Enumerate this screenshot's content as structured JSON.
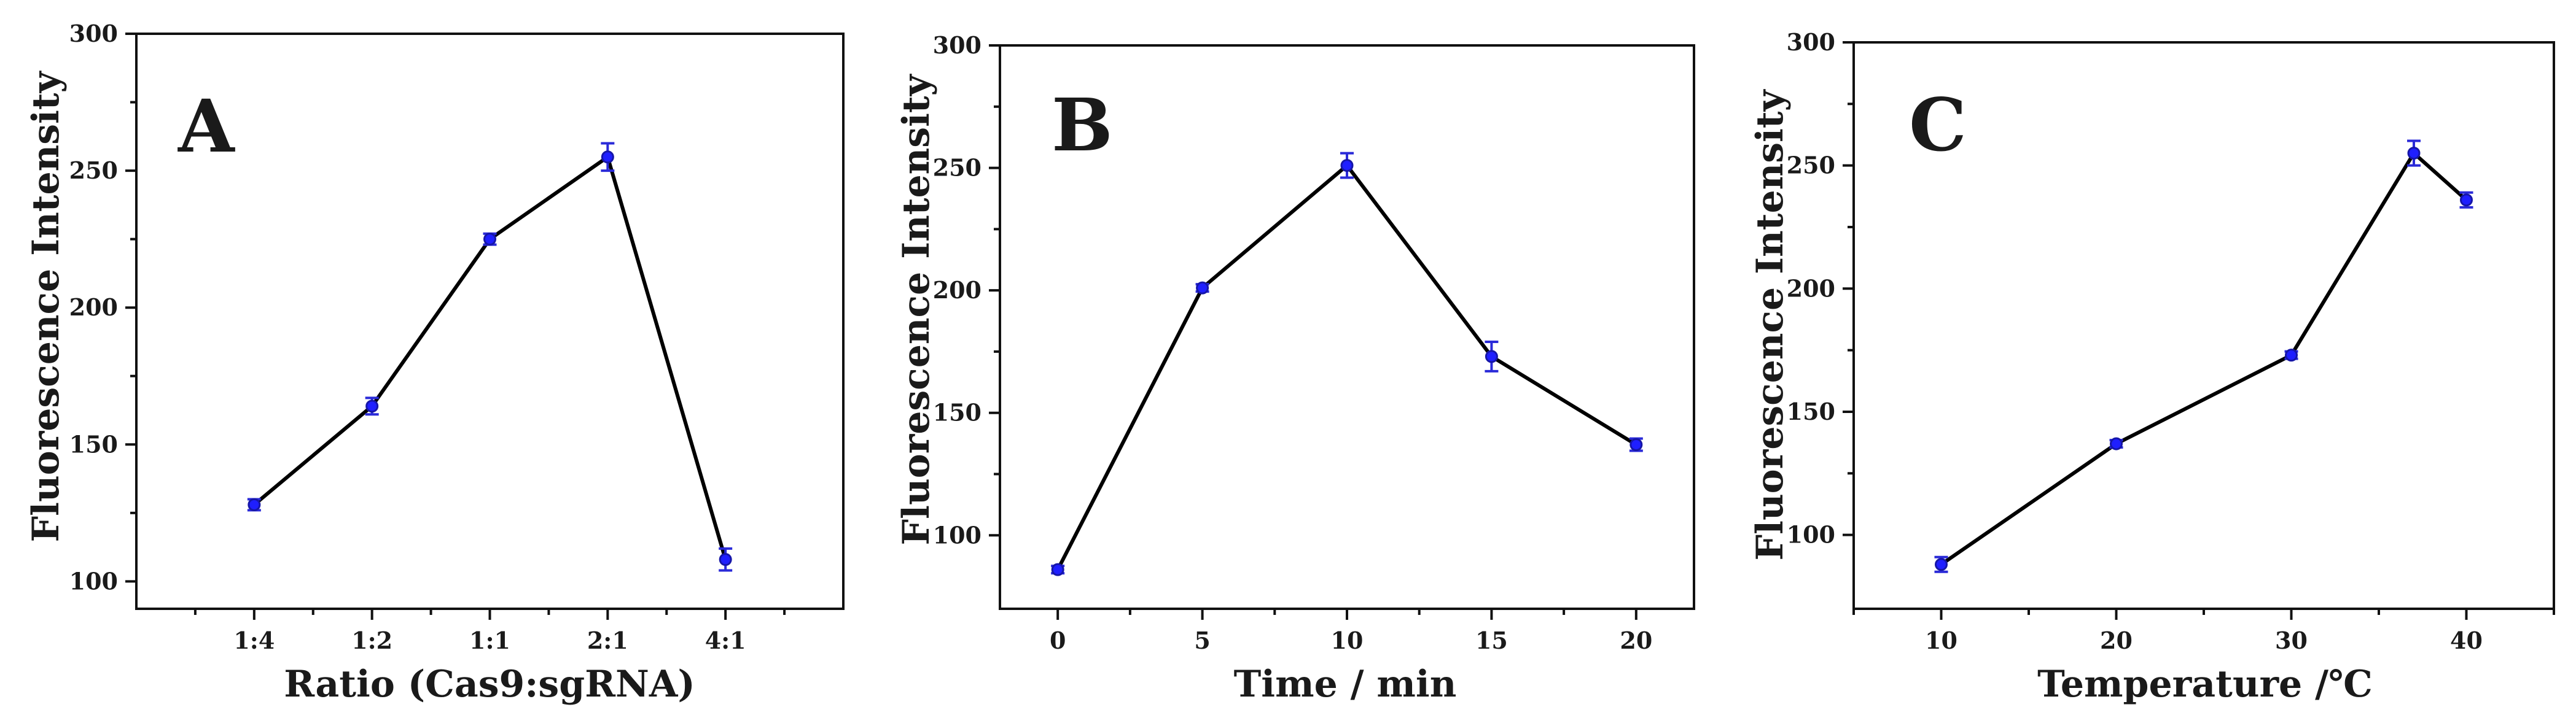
{
  "chart_data": [
    {
      "type": "line",
      "panel": "A",
      "title": "",
      "xlabel": "Ratio (Cas9:sgRNA)",
      "ylabel": "Fluorescence Intensity",
      "categories": [
        "1:4",
        "1:2",
        "1:1",
        "2:1",
        "4:1"
      ],
      "values": [
        128,
        164,
        225,
        255,
        108
      ],
      "errors": [
        2,
        3,
        2,
        5,
        4
      ],
      "ylim": [
        90,
        300
      ],
      "yticks": [
        100,
        150,
        200,
        250,
        300
      ],
      "colors": {
        "line": "#000000",
        "marker": "#1f1fff",
        "errorbar": "#2a2ad8"
      }
    },
    {
      "type": "line",
      "panel": "B",
      "title": "",
      "xlabel": "Time / min",
      "ylabel": "Fluorescence Intensity",
      "x": [
        0,
        5,
        10,
        15,
        20
      ],
      "values": [
        86,
        201,
        251,
        173,
        137
      ],
      "errors": [
        1.5,
        1.5,
        5,
        6,
        2.5
      ],
      "xlim": [
        -2,
        22
      ],
      "xticks": [
        0,
        5,
        10,
        15,
        20
      ],
      "ylim": [
        70,
        300
      ],
      "yticks": [
        100,
        150,
        200,
        250,
        300
      ],
      "colors": {
        "line": "#000000",
        "marker": "#1f1fff",
        "errorbar": "#2a2ad8"
      }
    },
    {
      "type": "line",
      "panel": "C",
      "title": "",
      "xlabel": "Temperature /℃",
      "ylabel": "Fluorescence Intensity",
      "x": [
        10,
        20,
        30,
        37,
        40
      ],
      "values": [
        88,
        137,
        173,
        255,
        236
      ],
      "errors": [
        3,
        1.5,
        1.5,
        5,
        3
      ],
      "xlim": [
        5,
        45
      ],
      "xticks": [
        10,
        20,
        30,
        40
      ],
      "ylim": [
        70,
        300
      ],
      "yticks": [
        100,
        150,
        200,
        250,
        300
      ],
      "colors": {
        "line": "#000000",
        "marker": "#1f1fff",
        "errorbar": "#2a2ad8"
      }
    }
  ]
}
